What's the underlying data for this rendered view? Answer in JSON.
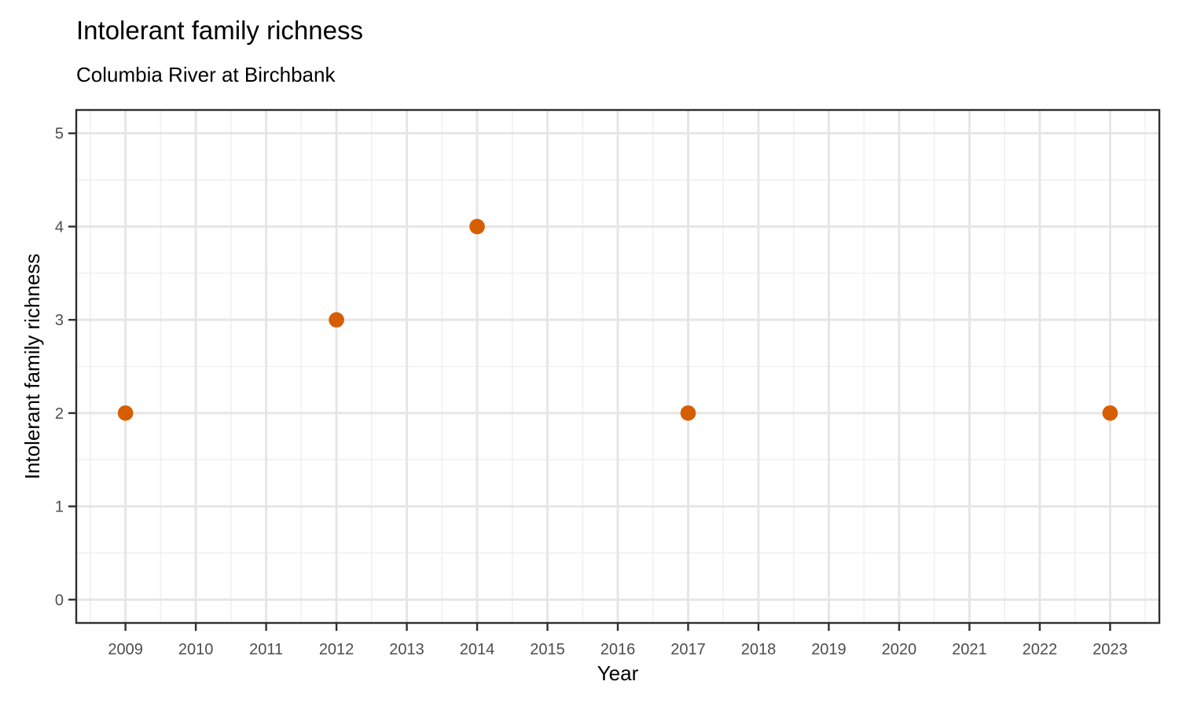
{
  "chart_data": {
    "type": "scatter",
    "title": "Intolerant family richness",
    "subtitle": "Columbia River at Birchbank",
    "xlabel": "Year",
    "ylabel": "Intolerant family richness",
    "x": [
      2009,
      2012,
      2014,
      2017,
      2023
    ],
    "y": [
      2,
      3,
      4,
      2,
      2
    ],
    "xlim": [
      2008.3,
      2023.7
    ],
    "ylim": [
      -0.25,
      5.25
    ],
    "x_ticks": [
      2009,
      2010,
      2011,
      2012,
      2013,
      2014,
      2015,
      2016,
      2017,
      2018,
      2019,
      2020,
      2021,
      2022,
      2023
    ],
    "y_ticks": [
      0,
      1,
      2,
      3,
      4,
      5
    ],
    "x_minor_ticks": [
      2008.5,
      2009.5,
      2010.5,
      2011.5,
      2012.5,
      2013.5,
      2014.5,
      2015.5,
      2016.5,
      2017.5,
      2018.5,
      2019.5,
      2020.5,
      2021.5,
      2022.5,
      2023.5
    ],
    "y_minor_ticks": [
      0.5,
      1.5,
      2.5,
      3.5,
      4.5
    ],
    "grid": "major-and-minor",
    "legend_position": "none",
    "point_radius_px": 9.8,
    "colors": {
      "point": "#D55E00",
      "grid_major": "#E6E6E6",
      "grid_minor": "#F0F0F0",
      "panel_border": "#2F2F2F",
      "tick_mark": "#2F2F2F",
      "tick_label": "#4D4D4D",
      "axis_title": "#000000",
      "title_text": "#000000",
      "panel_background": "#FFFFFF"
    }
  }
}
